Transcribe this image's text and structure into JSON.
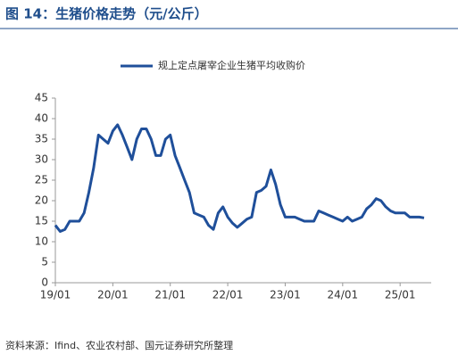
{
  "chart_data": {
    "type": "line",
    "title": "图 14：生猪价格走势（元/公斤）",
    "source": "资料来源：Ifind、农业农村部、国元证券研究所整理",
    "categories": [
      "19/01",
      null,
      null,
      null,
      null,
      null,
      null,
      null,
      null,
      null,
      null,
      null,
      "20/01",
      null,
      null,
      null,
      null,
      null,
      null,
      null,
      null,
      null,
      null,
      null,
      "21/01",
      null,
      null,
      null,
      null,
      null,
      null,
      null,
      null,
      null,
      null,
      null,
      "22/01",
      null,
      null,
      null,
      null,
      null,
      null,
      null,
      null,
      null,
      null,
      null,
      "23/01",
      null,
      null,
      null,
      null,
      null,
      null,
      null,
      null,
      null,
      null,
      null,
      "24/01",
      null,
      null,
      null,
      null,
      null,
      null,
      null,
      null,
      null,
      null,
      null,
      "25/01",
      null,
      null,
      null,
      null,
      null
    ],
    "series": [
      {
        "name": "规上定点屠宰企业生猪平均收购价",
        "color": "#1f4f9a",
        "values": [
          14,
          12.5,
          13,
          15,
          15,
          15,
          17,
          22,
          28,
          36,
          35,
          34,
          37,
          38.5,
          36,
          33,
          30,
          35,
          37.5,
          37.5,
          35,
          31,
          31,
          35,
          36,
          31,
          28,
          25,
          22,
          17,
          16.5,
          16,
          14,
          13,
          17,
          18.5,
          16,
          14.5,
          13.5,
          14.5,
          15.5,
          16,
          22,
          22.5,
          23.5,
          27.5,
          24,
          19,
          16,
          16,
          16,
          15.5,
          15,
          15,
          15,
          17.5,
          17,
          16.5,
          16,
          15.5,
          15,
          16,
          15,
          15.5,
          16,
          18,
          19,
          20.5,
          20,
          18.5,
          17.5,
          17,
          17,
          17,
          16,
          16,
          16,
          15.8
        ]
      }
    ],
    "ylim": [
      0,
      45
    ],
    "yticks": [
      0,
      5,
      10,
      15,
      20,
      25,
      30,
      35,
      40,
      45
    ],
    "legend": "top"
  }
}
